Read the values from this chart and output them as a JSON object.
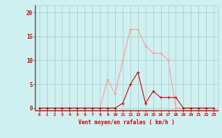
{
  "x_values": [
    0,
    1,
    2,
    3,
    4,
    5,
    6,
    7,
    8,
    9,
    10,
    11,
    12,
    13,
    14,
    15,
    16,
    17,
    18,
    19,
    20,
    21,
    22,
    23
  ],
  "line1_y": [
    0,
    0,
    0,
    0,
    0,
    0,
    0,
    0,
    0,
    6,
    3,
    10,
    16.5,
    16.5,
    13,
    11.5,
    11.5,
    10,
    0,
    0,
    0,
    0,
    0,
    0
  ],
  "line2_y": [
    0,
    0,
    0,
    0,
    0,
    0,
    0,
    0,
    0,
    0,
    0,
    1,
    5,
    7.5,
    1,
    3.5,
    2.2,
    2.2,
    2.2,
    0,
    0,
    0,
    0,
    0
  ],
  "line1_color": "#ff9999",
  "line2_color": "#cc0000",
  "bg_color": "#cef0f0",
  "grid_color": "#aacece",
  "xlabel": "Vent moyen/en rafales ( km/h )",
  "xlabel_color": "#cc0000",
  "ylabel_ticks": [
    0,
    5,
    10,
    15,
    20
  ],
  "x_labels": [
    "0",
    "1",
    "2",
    "3",
    "4",
    "5",
    "6",
    "7",
    "8",
    "9",
    "10",
    "11",
    "12",
    "13",
    "14",
    "15",
    "16",
    "17",
    "18",
    "19",
    "20",
    "21",
    "22",
    "23"
  ],
  "xlim": [
    -0.5,
    23.5
  ],
  "ylim": [
    -0.5,
    21.5
  ],
  "tick_color": "#cc0000",
  "left_spine_color": "#666666",
  "bottom_spine_color": "#cc0000"
}
